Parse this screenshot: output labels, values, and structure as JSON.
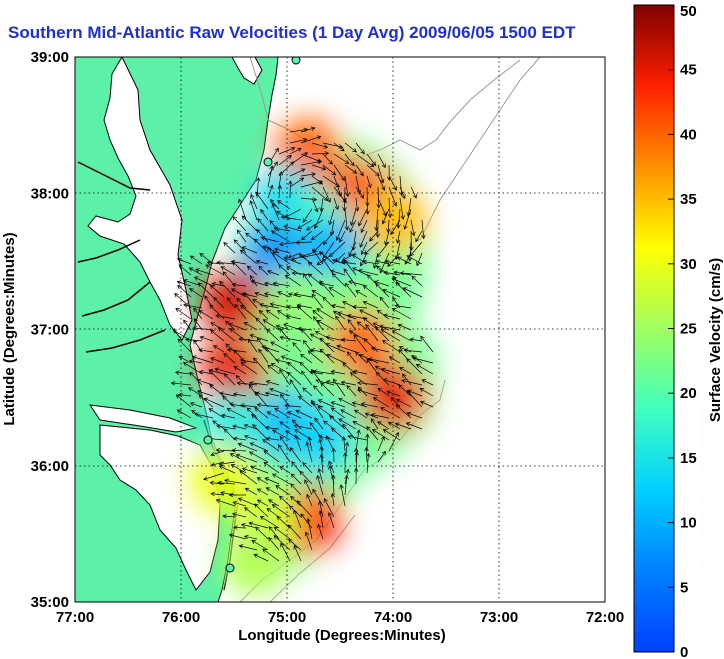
{
  "title": "Southern Mid-Atlantic Raw Velocities (1 Day Avg) 2009/06/05 1500 EDT",
  "colors": {
    "title": "#1f2fd6",
    "land": "#5cf0a8",
    "water": "#ffffff",
    "coast": "#000000",
    "bathymetry": "#999999",
    "vectors": "#000000",
    "gridline": "#000000"
  },
  "chart_data": {
    "type": "heatmap",
    "subtype": "surface current vector map",
    "xlabel": "Longitude (Degrees:Minutes)",
    "ylabel": "Latitude (Degrees:Minutes)",
    "x_ticks": [
      "77:00",
      "76:00",
      "75:00",
      "74:00",
      "73:00",
      "72:00"
    ],
    "y_ticks": [
      "39:00",
      "38:00",
      "37:00",
      "36:00",
      "35:00"
    ],
    "xlim": [
      -77,
      -72
    ],
    "ylim": [
      35,
      39
    ],
    "grid": true,
    "colorbar": {
      "label": "Surface Velocity (cm/s)",
      "min": 0,
      "max": 50,
      "ticks": [
        0,
        5,
        10,
        15,
        20,
        25,
        30,
        35,
        40,
        45,
        50
      ],
      "colormap": "jet"
    },
    "velocity_regions": [
      {
        "lon": -74.8,
        "lat": 38.3,
        "speed": 40
      },
      {
        "lon": -74.3,
        "lat": 38.0,
        "speed": 42
      },
      {
        "lon": -74.0,
        "lat": 37.8,
        "speed": 35
      },
      {
        "lon": -75.0,
        "lat": 37.95,
        "speed": 14
      },
      {
        "lon": -74.7,
        "lat": 37.75,
        "speed": 18
      },
      {
        "lon": -75.1,
        "lat": 37.55,
        "speed": 8
      },
      {
        "lon": -74.6,
        "lat": 37.55,
        "speed": 10
      },
      {
        "lon": -75.5,
        "lat": 37.2,
        "speed": 46
      },
      {
        "lon": -75.5,
        "lat": 36.7,
        "speed": 45
      },
      {
        "lon": -74.9,
        "lat": 37.2,
        "speed": 24
      },
      {
        "lon": -74.4,
        "lat": 37.2,
        "speed": 23
      },
      {
        "lon": -74.3,
        "lat": 36.9,
        "speed": 40
      },
      {
        "lon": -74.0,
        "lat": 36.5,
        "speed": 45
      },
      {
        "lon": -75.0,
        "lat": 36.3,
        "speed": 10
      },
      {
        "lon": -75.5,
        "lat": 36.3,
        "speed": 16
      },
      {
        "lon": -74.7,
        "lat": 36.2,
        "speed": 13
      },
      {
        "lon": -75.6,
        "lat": 35.9,
        "speed": 30
      },
      {
        "lon": -74.8,
        "lat": 35.6,
        "speed": 44
      },
      {
        "lon": -75.2,
        "lat": 35.6,
        "speed": 28
      },
      {
        "lon": -75.3,
        "lat": 35.3,
        "speed": 26
      }
    ]
  }
}
